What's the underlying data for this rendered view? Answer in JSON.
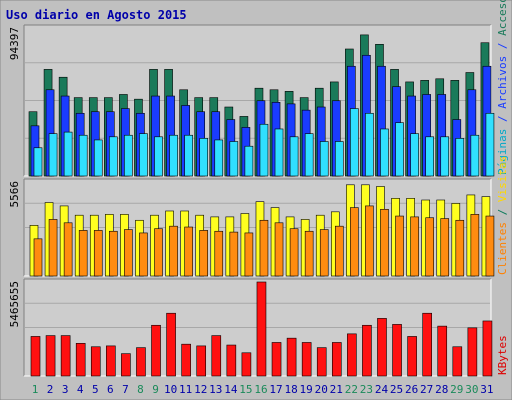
{
  "chart_title": "Uso diario en Agosto 2015",
  "colors": {
    "background": "#c0c0c0",
    "plot_background": "#cdcdcd",
    "title": "#0000aa",
    "visits_text": "#0a7a5a",
    "pages_text": "#00a8c8",
    "files_text": "#1a3cff",
    "hits_text": "#1a7a5a",
    "clients_text": "#ff8000",
    "visitors_text": "#ffd800",
    "kbytes_text": "#dd0000",
    "weekend_text": "#1a8a5a",
    "weekday_text": "#0000aa",
    "hits_bar": "#1a7a5a",
    "files_bar": "#1a3cff",
    "pages_bar": "#30e0ff",
    "visits_bar": "#ffff20",
    "clients_bar": "#ff8c10",
    "kbytes_bar": "#ff1010"
  },
  "chart_data": [
    {
      "type": "bar",
      "panel": "top",
      "ymax_label": "94397",
      "ymax": 94397,
      "legend": [
        {
          "text": "Páginas",
          "color_key": "pages_text"
        },
        {
          "text": " / ",
          "color_key": "files_text"
        },
        {
          "text": "Archivos",
          "color_key": "files_text"
        },
        {
          "text": " / ",
          "color_key": "files_text"
        },
        {
          "text": "Accesos",
          "color_key": "hits_text"
        }
      ],
      "categories": [
        "1",
        "2",
        "3",
        "4",
        "5",
        "6",
        "7",
        "8",
        "9",
        "10",
        "11",
        "12",
        "13",
        "14",
        "15",
        "16",
        "17",
        "18",
        "19",
        "20",
        "21",
        "22",
        "23",
        "24",
        "25",
        "26",
        "27",
        "28",
        "29",
        "30",
        "31"
      ],
      "series": [
        {
          "name": "Accesos",
          "color_key": "hits_bar",
          "values": [
            41000,
            68000,
            63000,
            50000,
            50000,
            50000,
            52000,
            49000,
            68000,
            68000,
            55000,
            50000,
            50000,
            44000,
            38000,
            56000,
            55000,
            54000,
            50000,
            56000,
            60000,
            81000,
            90000,
            84000,
            68000,
            60000,
            61000,
            62000,
            61000,
            66000,
            85000
          ]
        },
        {
          "name": "Archivos",
          "color_key": "files_bar",
          "values": [
            32000,
            55000,
            51000,
            40000,
            41000,
            41000,
            43000,
            40000,
            51000,
            51000,
            45000,
            41000,
            41000,
            36000,
            31000,
            48000,
            47000,
            46000,
            42000,
            44000,
            48000,
            70000,
            77000,
            70000,
            57000,
            51000,
            52000,
            52000,
            36000,
            55000,
            70000
          ]
        },
        {
          "name": "Páginas",
          "color_key": "pages_bar",
          "values": [
            18000,
            27000,
            28000,
            26000,
            23000,
            25000,
            26000,
            27000,
            25000,
            26000,
            26000,
            24000,
            23000,
            22000,
            19000,
            33000,
            30000,
            25000,
            27000,
            22000,
            22000,
            43000,
            40000,
            30000,
            34000,
            27000,
            25000,
            25000,
            24000,
            26000,
            40000
          ]
        }
      ]
    },
    {
      "type": "bar",
      "panel": "middle",
      "ymax_label": "5566",
      "ymax": 5566,
      "legend": [
        {
          "text": "Clientes",
          "color_key": "clients_text"
        },
        {
          "text": " / ",
          "color_key": "visits_text"
        },
        {
          "text": "Visitas",
          "color_key": "visitors_text"
        }
      ],
      "categories": [
        "1",
        "2",
        "3",
        "4",
        "5",
        "6",
        "7",
        "8",
        "9",
        "10",
        "11",
        "12",
        "13",
        "14",
        "15",
        "16",
        "17",
        "18",
        "19",
        "20",
        "21",
        "22",
        "23",
        "24",
        "25",
        "26",
        "27",
        "28",
        "29",
        "30",
        "31"
      ],
      "series": [
        {
          "name": "Visitas",
          "color_key": "visits_bar",
          "values": [
            3000,
            4350,
            4150,
            3600,
            3600,
            3650,
            3650,
            3300,
            3600,
            3850,
            3850,
            3600,
            3500,
            3500,
            3700,
            4400,
            4050,
            3500,
            3350,
            3600,
            3800,
            5400,
            5400,
            5300,
            4600,
            4600,
            4500,
            4500,
            4300,
            4800,
            4700
          ]
        },
        {
          "name": "Clientes",
          "color_key": "clients_bar",
          "values": [
            2200,
            3350,
            3150,
            2700,
            2700,
            2650,
            2750,
            2550,
            2800,
            2950,
            2900,
            2700,
            2650,
            2600,
            2550,
            3300,
            3150,
            2800,
            2650,
            2750,
            2950,
            4050,
            4150,
            3950,
            3550,
            3500,
            3450,
            3400,
            3300,
            3650,
            3550
          ]
        }
      ]
    },
    {
      "type": "bar",
      "panel": "bottom",
      "ymax_label": "5465655",
      "ymax": 5465655,
      "legend": [
        {
          "text": "KBytes",
          "color_key": "kbytes_text"
        }
      ],
      "categories": [
        "1",
        "2",
        "3",
        "4",
        "5",
        "6",
        "7",
        "8",
        "9",
        "10",
        "11",
        "12",
        "13",
        "14",
        "15",
        "16",
        "17",
        "18",
        "19",
        "20",
        "21",
        "22",
        "23",
        "24",
        "25",
        "26",
        "27",
        "28",
        "29",
        "30",
        "31"
      ],
      "series": [
        {
          "name": "KBytes",
          "color_key": "kbytes_bar",
          "values": [
            2300000,
            2350000,
            2350000,
            1900000,
            1700000,
            1750000,
            1300000,
            1650000,
            2950000,
            3650000,
            1850000,
            1750000,
            2350000,
            1800000,
            1350000,
            5465655,
            1950000,
            2200000,
            1950000,
            1650000,
            1950000,
            2450000,
            2950000,
            3350000,
            3000000,
            2300000,
            3650000,
            2900000,
            1700000,
            2800000,
            3200000
          ]
        }
      ]
    }
  ],
  "weekend_days": [
    "1",
    "8",
    "9",
    "15",
    "16",
    "22",
    "23",
    "29",
    "30"
  ]
}
